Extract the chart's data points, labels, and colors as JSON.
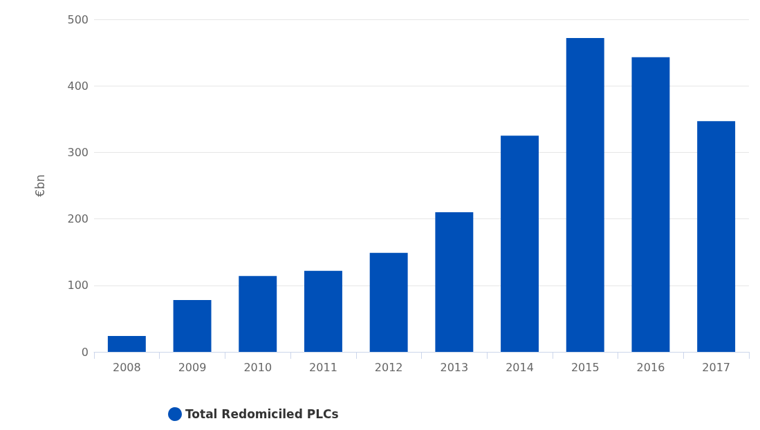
{
  "chart_data": {
    "type": "bar",
    "ylabel": "€bn",
    "categories": [
      "2008",
      "2009",
      "2010",
      "2011",
      "2012",
      "2013",
      "2014",
      "2015",
      "2016",
      "2017"
    ],
    "series": [
      {
        "name": "Total Redomiciled PLCs",
        "color": "#0050b8",
        "values": [
          24,
          78,
          114,
          122,
          149,
          210,
          325,
          472,
          443,
          347
        ]
      }
    ],
    "ylim": [
      0,
      500
    ],
    "yticks": [
      0,
      100,
      200,
      300,
      400,
      500
    ],
    "grid": "y",
    "legend": "bottom"
  }
}
